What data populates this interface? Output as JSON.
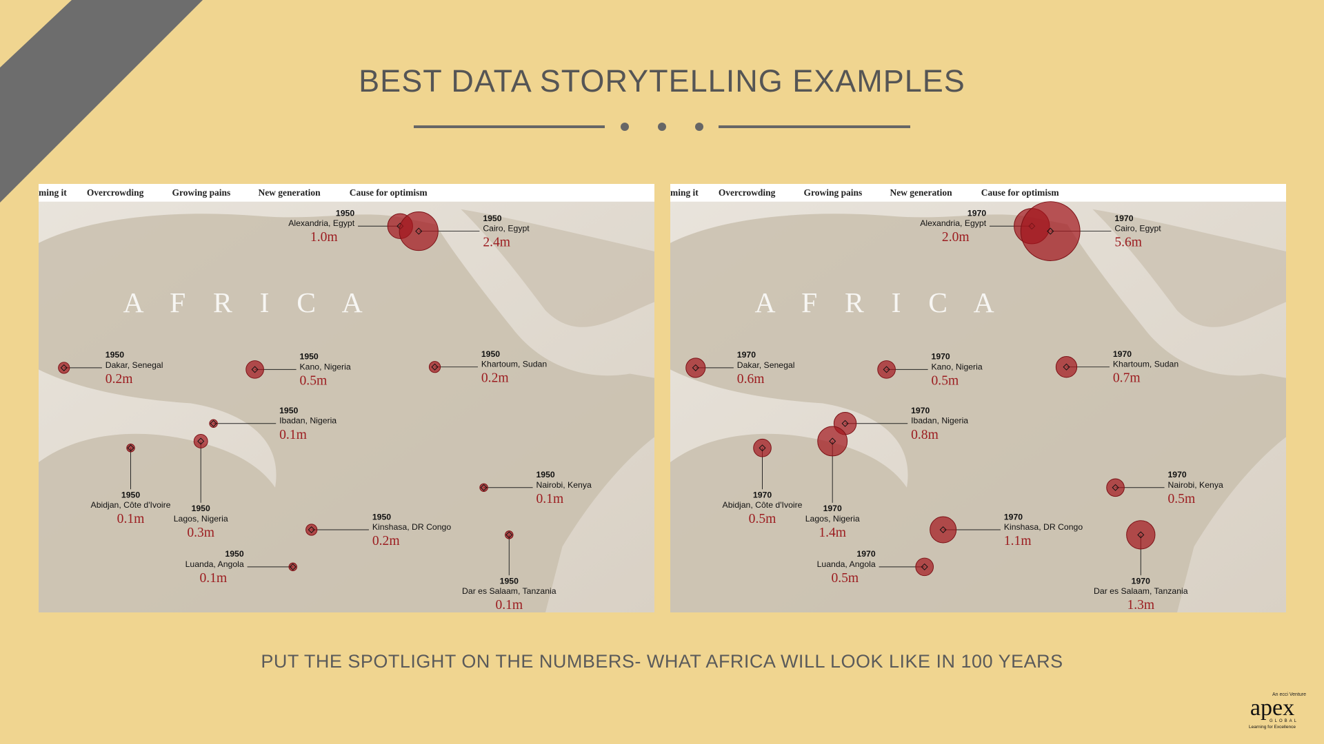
{
  "header": {
    "title": "BEST DATA STORYTELLING EXAMPLES"
  },
  "panels": [
    {
      "tabs": [
        "ming it",
        "Overcrowding",
        "Growing pains",
        "New generation",
        "Cause for optimism"
      ],
      "continent_label": "A F R I C A",
      "cities": [
        {
          "year": "1950",
          "name": "Alexandria, Egypt",
          "population": 1.0,
          "label": "1.0m"
        },
        {
          "year": "1950",
          "name": "Cairo, Egypt",
          "population": 2.4,
          "label": "2.4m"
        },
        {
          "year": "1950",
          "name": "Dakar, Senegal",
          "population": 0.2,
          "label": "0.2m"
        },
        {
          "year": "1950",
          "name": "Kano, Nigeria",
          "population": 0.5,
          "label": "0.5m"
        },
        {
          "year": "1950",
          "name": "Khartoum, Sudan",
          "population": 0.2,
          "label": "0.2m"
        },
        {
          "year": "1950",
          "name": "Ibadan, Nigeria",
          "population": 0.1,
          "label": "0.1m"
        },
        {
          "year": "1950",
          "name": "Abidjan, Côte d'Ivoire",
          "population": 0.1,
          "label": "0.1m"
        },
        {
          "year": "1950",
          "name": "Lagos, Nigeria",
          "population": 0.3,
          "label": "0.3m"
        },
        {
          "year": "1950",
          "name": "Nairobi, Kenya",
          "population": 0.1,
          "label": "0.1m"
        },
        {
          "year": "1950",
          "name": "Kinshasa, DR Congo",
          "population": 0.2,
          "label": "0.2m"
        },
        {
          "year": "1950",
          "name": "Luanda, Angola",
          "population": 0.1,
          "label": "0.1m"
        },
        {
          "year": "1950",
          "name": "Dar es Salaam, Tanzania",
          "population": 0.1,
          "label": "0.1m"
        }
      ]
    },
    {
      "tabs": [
        "ming it",
        "Overcrowding",
        "Growing pains",
        "New generation",
        "Cause for optimism"
      ],
      "continent_label": "A F R I C A",
      "cities": [
        {
          "year": "1970",
          "name": "Alexandria, Egypt",
          "population": 2.0,
          "label": "2.0m"
        },
        {
          "year": "1970",
          "name": "Cairo, Egypt",
          "population": 5.6,
          "label": "5.6m"
        },
        {
          "year": "1970",
          "name": "Dakar, Senegal",
          "population": 0.6,
          "label": "0.6m"
        },
        {
          "year": "1970",
          "name": "Kano, Nigeria",
          "population": 0.5,
          "label": "0.5m"
        },
        {
          "year": "1970",
          "name": "Khartoum, Sudan",
          "population": 0.7,
          "label": "0.7m"
        },
        {
          "year": "1970",
          "name": "Ibadan, Nigeria",
          "population": 0.8,
          "label": "0.8m"
        },
        {
          "year": "1970",
          "name": "Abidjan, Côte d'Ivoire",
          "population": 0.5,
          "label": "0.5m"
        },
        {
          "year": "1970",
          "name": "Lagos, Nigeria",
          "population": 1.4,
          "label": "1.4m"
        },
        {
          "year": "1970",
          "name": "Nairobi, Kenya",
          "population": 0.5,
          "label": "0.5m"
        },
        {
          "year": "1970",
          "name": "Kinshasa, DR Congo",
          "population": 1.1,
          "label": "1.1m"
        },
        {
          "year": "1970",
          "name": "Luanda, Angola",
          "population": 0.5,
          "label": "0.5m"
        },
        {
          "year": "1970",
          "name": "Dar es Salaam, Tanzania",
          "population": 1.3,
          "label": "1.3m"
        }
      ]
    }
  ],
  "footer": {
    "subtitle": "PUT THE SPOTLIGHT ON THE NUMBERS- WHAT AFRICA WILL LOOK LIKE IN 100 YEARS"
  },
  "logo": {
    "tagline": "An ecci Venture",
    "brand": "apex",
    "sub": "GLOBAL",
    "motto": "Learning for Excellence"
  }
}
